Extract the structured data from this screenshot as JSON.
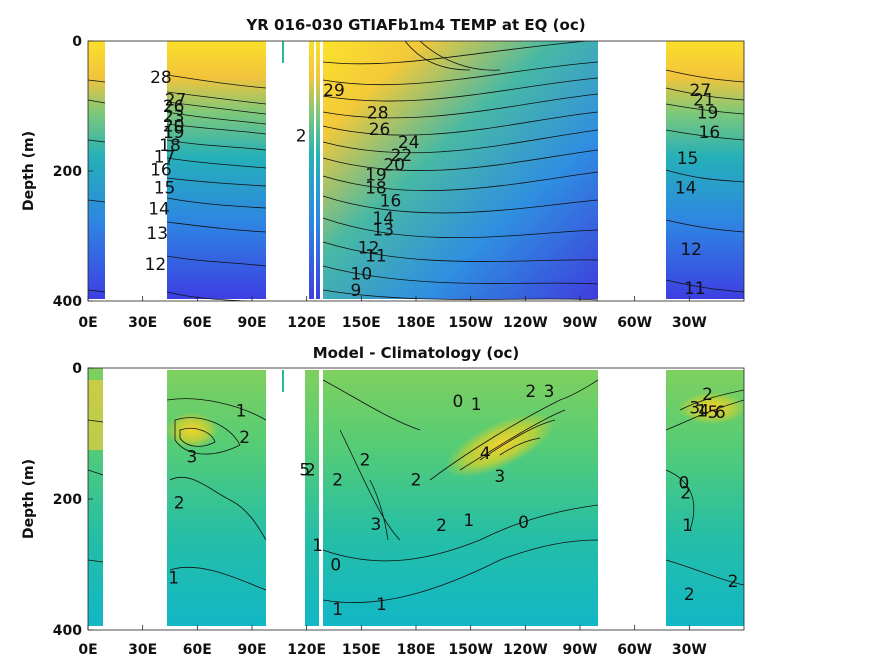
{
  "chart_data": [
    {
      "type": "heatmap",
      "title": "YR 016-030 GTIAFb1m4 TEMP at EQ",
      "units": "oc",
      "ylabel": "Depth (m)",
      "xlabel": "",
      "x_ticks": [
        {
          "lon": 0,
          "label": "0E"
        },
        {
          "lon": 30,
          "label": "30E"
        },
        {
          "lon": 60,
          "label": "60E"
        },
        {
          "lon": 90,
          "label": "90E"
        },
        {
          "lon": 120,
          "label": "120E"
        },
        {
          "lon": 150,
          "label": "150E"
        },
        {
          "lon": 180,
          "label": "180E"
        },
        {
          "lon": 210,
          "label": "150W"
        },
        {
          "lon": 240,
          "label": "120W"
        },
        {
          "lon": 270,
          "label": "90W"
        },
        {
          "lon": 300,
          "label": "60W"
        },
        {
          "lon": 330,
          "label": "30W"
        }
      ],
      "y_ticks": [
        0,
        200,
        400
      ],
      "xlim": [
        0,
        360
      ],
      "ylim": [
        400,
        0
      ],
      "colors": {
        "low": "#3d3ee0",
        "mid": "#2bb89a",
        "high": "#fcdf1e"
      },
      "contour_labels": [
        {
          "lon": 40,
          "depth": 55,
          "text": "28"
        },
        {
          "lon": 48,
          "depth": 90,
          "text": "27"
        },
        {
          "lon": 47,
          "depth": 100,
          "text": "26"
        },
        {
          "lon": 47,
          "depth": 115,
          "text": "23"
        },
        {
          "lon": 47,
          "depth": 130,
          "text": "20"
        },
        {
          "lon": 47,
          "depth": 140,
          "text": "19"
        },
        {
          "lon": 45,
          "depth": 160,
          "text": "18"
        },
        {
          "lon": 42,
          "depth": 178,
          "text": "17"
        },
        {
          "lon": 40,
          "depth": 198,
          "text": "16"
        },
        {
          "lon": 42,
          "depth": 225,
          "text": "15"
        },
        {
          "lon": 39,
          "depth": 258,
          "text": "14"
        },
        {
          "lon": 38,
          "depth": 295,
          "text": "13"
        },
        {
          "lon": 37,
          "depth": 343,
          "text": "12"
        },
        {
          "lon": 117,
          "depth": 145,
          "text": "2"
        },
        {
          "lon": 135,
          "depth": 75,
          "text": "29"
        },
        {
          "lon": 159,
          "depth": 110,
          "text": "28"
        },
        {
          "lon": 160,
          "depth": 135,
          "text": "26"
        },
        {
          "lon": 176,
          "depth": 155,
          "text": "24"
        },
        {
          "lon": 172,
          "depth": 175,
          "text": "22"
        },
        {
          "lon": 168,
          "depth": 190,
          "text": "20"
        },
        {
          "lon": 158,
          "depth": 205,
          "text": "19"
        },
        {
          "lon": 158,
          "depth": 225,
          "text": "18"
        },
        {
          "lon": 166,
          "depth": 245,
          "text": "16"
        },
        {
          "lon": 162,
          "depth": 272,
          "text": "14"
        },
        {
          "lon": 162,
          "depth": 290,
          "text": "13"
        },
        {
          "lon": 154,
          "depth": 318,
          "text": "12"
        },
        {
          "lon": 158,
          "depth": 330,
          "text": "11"
        },
        {
          "lon": 150,
          "depth": 358,
          "text": "10"
        },
        {
          "lon": 147,
          "depth": 383,
          "text": "9"
        },
        {
          "lon": 336,
          "depth": 75,
          "text": "27"
        },
        {
          "lon": 338,
          "depth": 90,
          "text": "21"
        },
        {
          "lon": 340,
          "depth": 110,
          "text": "19"
        },
        {
          "lon": 341,
          "depth": 140,
          "text": "16"
        },
        {
          "lon": 329,
          "depth": 180,
          "text": "15"
        },
        {
          "lon": 328,
          "depth": 225,
          "text": "14"
        },
        {
          "lon": 331,
          "depth": 320,
          "text": "12"
        },
        {
          "lon": 333,
          "depth": 380,
          "text": "11"
        }
      ]
    },
    {
      "type": "heatmap",
      "title": "Model - Climatology",
      "units": "oc",
      "ylabel": "Depth (m)",
      "xlabel": "",
      "x_ticks": [
        {
          "lon": 0,
          "label": "0E"
        },
        {
          "lon": 30,
          "label": "30E"
        },
        {
          "lon": 60,
          "label": "60E"
        },
        {
          "lon": 90,
          "label": "90E"
        },
        {
          "lon": 120,
          "label": "120E"
        },
        {
          "lon": 150,
          "label": "150E"
        },
        {
          "lon": 180,
          "label": "180E"
        },
        {
          "lon": 210,
          "label": "150W"
        },
        {
          "lon": 240,
          "label": "120W"
        },
        {
          "lon": 270,
          "label": "90W"
        },
        {
          "lon": 300,
          "label": "60W"
        },
        {
          "lon": 330,
          "label": "30W"
        }
      ],
      "y_ticks": [
        0,
        200,
        400
      ],
      "xlim": [
        0,
        360
      ],
      "ylim": [
        400,
        0
      ],
      "colors": {
        "low": "#10b5c5",
        "mid": "#5ccf6a",
        "high": "#f7d22a"
      },
      "contour_labels": [
        {
          "lon": 84,
          "depth": 65,
          "text": "1"
        },
        {
          "lon": 86,
          "depth": 105,
          "text": "2"
        },
        {
          "lon": 57,
          "depth": 135,
          "text": "3"
        },
        {
          "lon": 50,
          "depth": 205,
          "text": "2"
        },
        {
          "lon": 47,
          "depth": 320,
          "text": "1"
        },
        {
          "lon": 119,
          "depth": 155,
          "text": "5"
        },
        {
          "lon": 122,
          "depth": 155,
          "text": "2"
        },
        {
          "lon": 137,
          "depth": 170,
          "text": "2"
        },
        {
          "lon": 152,
          "depth": 140,
          "text": "2"
        },
        {
          "lon": 180,
          "depth": 170,
          "text": "2"
        },
        {
          "lon": 158,
          "depth": 238,
          "text": "3"
        },
        {
          "lon": 126,
          "depth": 270,
          "text": "1"
        },
        {
          "lon": 136,
          "depth": 300,
          "text": "0"
        },
        {
          "lon": 161,
          "depth": 360,
          "text": "1"
        },
        {
          "lon": 137,
          "depth": 368,
          "text": "1"
        },
        {
          "lon": 203,
          "depth": 50,
          "text": "0"
        },
        {
          "lon": 213,
          "depth": 55,
          "text": "1"
        },
        {
          "lon": 243,
          "depth": 35,
          "text": "2"
        },
        {
          "lon": 253,
          "depth": 35,
          "text": "3"
        },
        {
          "lon": 218,
          "depth": 130,
          "text": "4"
        },
        {
          "lon": 226,
          "depth": 165,
          "text": "3"
        },
        {
          "lon": 194,
          "depth": 240,
          "text": "2"
        },
        {
          "lon": 209,
          "depth": 232,
          "text": "1"
        },
        {
          "lon": 239,
          "depth": 235,
          "text": "0"
        },
        {
          "lon": 337,
          "depth": 65,
          "text": "1"
        },
        {
          "lon": 340,
          "depth": 40,
          "text": "2"
        },
        {
          "lon": 333,
          "depth": 60,
          "text": "3"
        },
        {
          "lon": 338,
          "depth": 65,
          "text": "4"
        },
        {
          "lon": 343,
          "depth": 67,
          "text": "5"
        },
        {
          "lon": 347,
          "depth": 67,
          "text": "6"
        },
        {
          "lon": 327,
          "depth": 175,
          "text": "0"
        },
        {
          "lon": 328,
          "depth": 190,
          "text": "2"
        },
        {
          "lon": 329,
          "depth": 240,
          "text": "1"
        },
        {
          "lon": 330,
          "depth": 345,
          "text": "2"
        },
        {
          "lon": 354,
          "depth": 325,
          "text": "2"
        }
      ]
    }
  ]
}
